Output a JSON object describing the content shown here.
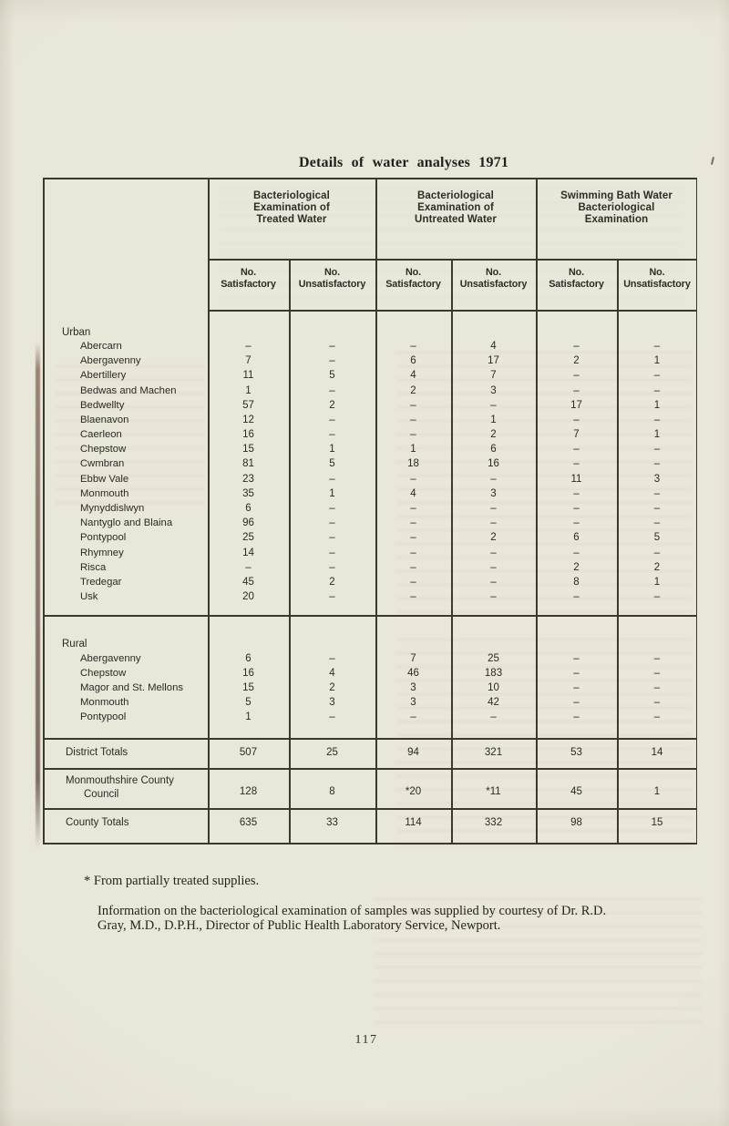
{
  "page": {
    "title": "Details of water analyses 1971",
    "footnote_marker": "*",
    "footnote_text": "From partially treated supplies.",
    "credit_lines": [
      "Information on the bacteriological examination of samples was supplied by courtesy of Dr. R.D.",
      "Gray, M.D., D.P.H., Director of Public Health Laboratory Service, Newport."
    ],
    "page_number": "117"
  },
  "table": {
    "column_groups": [
      {
        "lines": [
          "Bacteriological",
          "Examination of",
          "Treated Water"
        ]
      },
      {
        "lines": [
          "Bacteriological",
          "Examination of",
          "Untreated Water"
        ]
      },
      {
        "lines": [
          "Swimming Bath Water",
          "Bacteriological",
          "Examination"
        ]
      }
    ],
    "subheader_labels": {
      "no": "No.",
      "satisfactory": "Satisfactory",
      "unsatisfactory": "Unsatisfactory"
    },
    "sections": [
      {
        "label": "Urban",
        "rows": [
          {
            "name": "Abercarn",
            "values": [
              "–",
              "–",
              "–",
              "4",
              "–",
              "–"
            ]
          },
          {
            "name": "Abergavenny",
            "values": [
              "7",
              "–",
              "6",
              "17",
              "2",
              "1"
            ]
          },
          {
            "name": "Abertillery",
            "values": [
              "11",
              "5",
              "4",
              "7",
              "–",
              "–"
            ]
          },
          {
            "name": "Bedwas and Machen",
            "values": [
              "1",
              "–",
              "2",
              "3",
              "–",
              "–"
            ]
          },
          {
            "name": "Bedwellty",
            "values": [
              "57",
              "2",
              "–",
              "–",
              "17",
              "1"
            ]
          },
          {
            "name": "Blaenavon",
            "values": [
              "12",
              "–",
              "–",
              "1",
              "–",
              "–"
            ]
          },
          {
            "name": "Caerleon",
            "values": [
              "16",
              "–",
              "–",
              "2",
              "7",
              "1"
            ]
          },
          {
            "name": "Chepstow",
            "values": [
              "15",
              "1",
              "1",
              "6",
              "–",
              "–"
            ]
          },
          {
            "name": "Cwmbran",
            "values": [
              "81",
              "5",
              "18",
              "16",
              "–",
              "–"
            ]
          },
          {
            "name": "Ebbw Vale",
            "values": [
              "23",
              "–",
              "–",
              "–",
              "11",
              "3"
            ]
          },
          {
            "name": "Monmouth",
            "values": [
              "35",
              "1",
              "4",
              "3",
              "–",
              "–"
            ]
          },
          {
            "name": "Mynyddislwyn",
            "values": [
              "6",
              "–",
              "–",
              "–",
              "–",
              "–"
            ]
          },
          {
            "name": "Nantyglo and Blaina",
            "values": [
              "96",
              "–",
              "–",
              "–",
              "–",
              "–"
            ]
          },
          {
            "name": "Pontypool",
            "values": [
              "25",
              "–",
              "–",
              "2",
              "6",
              "5"
            ]
          },
          {
            "name": "Rhymney",
            "values": [
              "14",
              "–",
              "–",
              "–",
              "–",
              "–"
            ]
          },
          {
            "name": "Risca",
            "values": [
              "–",
              "–",
              "–",
              "–",
              "2",
              "2"
            ]
          },
          {
            "name": "Tredegar",
            "values": [
              "45",
              "2",
              "–",
              "–",
              "8",
              "1"
            ]
          },
          {
            "name": "Usk",
            "values": [
              "20",
              "–",
              "–",
              "–",
              "–",
              "–"
            ]
          }
        ]
      },
      {
        "label": "Rural",
        "rows": [
          {
            "name": "Abergavenny",
            "values": [
              "6",
              "–",
              "7",
              "25",
              "–",
              "–"
            ]
          },
          {
            "name": "Chepstow",
            "values": [
              "16",
              "4",
              "46",
              "183",
              "–",
              "–"
            ]
          },
          {
            "name": "Magor and St. Mellons",
            "values": [
              "15",
              "2",
              "3",
              "10",
              "–",
              "–"
            ]
          },
          {
            "name": "Monmouth",
            "values": [
              "5",
              "3",
              "3",
              "42",
              "–",
              "–"
            ]
          },
          {
            "name": "Pontypool",
            "values": [
              "1",
              "–",
              "–",
              "–",
              "–",
              "–"
            ]
          }
        ]
      }
    ],
    "summary_rows": [
      {
        "name_lines": [
          "District Totals"
        ],
        "values": [
          "507",
          "25",
          "94",
          "321",
          "53",
          "14"
        ]
      },
      {
        "name_lines": [
          "Monmouthshire County",
          "Council"
        ],
        "values": [
          "128",
          "8",
          "*20",
          "*11",
          "45",
          "1"
        ]
      },
      {
        "name_lines": [
          "County Totals"
        ],
        "values": [
          "635",
          "33",
          "114",
          "332",
          "98",
          "15"
        ]
      }
    ]
  }
}
